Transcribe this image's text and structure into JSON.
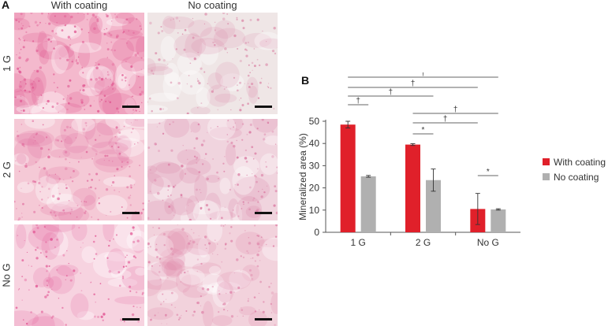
{
  "panel_a": {
    "letter": "A",
    "columns": [
      "With coating",
      "No coating"
    ],
    "rows": [
      "1 G",
      "2 G",
      "No G"
    ],
    "tiles": [
      {
        "row": "1 G",
        "column": "With coating",
        "base": "#f4b9cd",
        "spot": "#e05690",
        "density": 0.9
      },
      {
        "row": "1 G",
        "column": "No coating",
        "base": "#efe6e6",
        "spot": "#d97fa2",
        "density": 0.35
      },
      {
        "row": "2 G",
        "column": "With coating",
        "base": "#f5c9d6",
        "spot": "#e0669a",
        "density": 0.6
      },
      {
        "row": "2 G",
        "column": "No coating",
        "base": "#f0d4de",
        "spot": "#d9729d",
        "density": 0.5
      },
      {
        "row": "No G",
        "column": "With coating",
        "base": "#f7d3e0",
        "spot": "#e04a8c",
        "density": 0.3
      },
      {
        "row": "No G",
        "column": "No coating",
        "base": "#f2d2dc",
        "spot": "#de80a6",
        "density": 0.55
      }
    ]
  },
  "panel_b": {
    "letter": "B"
  },
  "chart_data": {
    "type": "bar",
    "categories": [
      "1 G",
      "2 G",
      "No G"
    ],
    "series": [
      {
        "name": "With coating",
        "color": "#e0202a",
        "values": [
          48.5,
          39.5,
          10.5
        ],
        "errors": [
          1.5,
          0.4,
          7
        ]
      },
      {
        "name": "No coating",
        "color": "#b0b0b0",
        "values": [
          25.2,
          23.5,
          10.3
        ],
        "errors": [
          0.4,
          5,
          0.3
        ]
      }
    ],
    "ylabel": "Mineralized area (%)",
    "xlabel": "",
    "ylim": [
      0,
      50
    ],
    "yticks": [
      0,
      10,
      20,
      30,
      40,
      50
    ],
    "legend_position": "right",
    "significance": [
      {
        "symbol": "†",
        "from": "1 G / With coating",
        "to": "No G / No coating"
      },
      {
        "symbol": "†",
        "from": "1 G / With coating",
        "to": "No G / With coating"
      },
      {
        "symbol": "†",
        "from": "1 G / With coating",
        "to": "2 G / No coating"
      },
      {
        "symbol": "†",
        "from": "1 G / With coating",
        "to": "1 G / No coating"
      },
      {
        "symbol": "†",
        "from": "2 G / With coating",
        "to": "No G / No coating"
      },
      {
        "symbol": "†",
        "from": "2 G / With coating",
        "to": "No G / With coating"
      },
      {
        "symbol": "*",
        "from": "2 G / With coating",
        "to": "2 G / No coating"
      },
      {
        "symbol": "*",
        "from": "No G / With coating",
        "to": "No G / No coating"
      }
    ]
  }
}
